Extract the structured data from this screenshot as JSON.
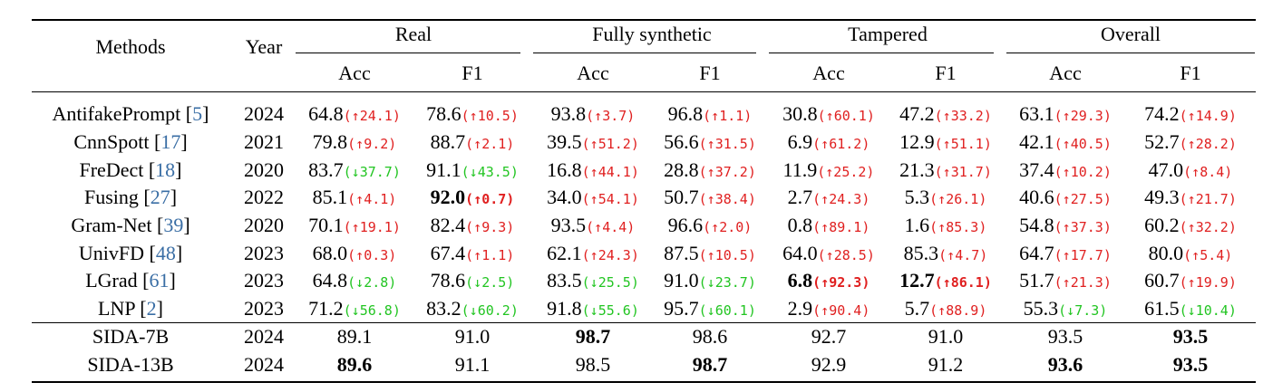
{
  "headers": {
    "methods": "Methods",
    "year": "Year",
    "groups": [
      "Real",
      "Fully synthetic",
      "Tampered",
      "Overall"
    ],
    "sub": [
      "Acc",
      "F1"
    ]
  },
  "rows": [
    {
      "name": "AntifakePrompt",
      "cite": "5",
      "year": "2024",
      "cells": [
        {
          "v": "64.8",
          "d": "(↑24.1)",
          "dir": "up"
        },
        {
          "v": "78.6",
          "d": "(↑10.5)",
          "dir": "up"
        },
        {
          "v": "93.8",
          "d": "(↑3.7)",
          "dir": "up"
        },
        {
          "v": "96.8",
          "d": "(↑1.1)",
          "dir": "up"
        },
        {
          "v": "30.8",
          "d": "(↑60.1)",
          "dir": "up"
        },
        {
          "v": "47.2",
          "d": "(↑33.2)",
          "dir": "up"
        },
        {
          "v": "63.1",
          "d": "(↑29.3)",
          "dir": "up"
        },
        {
          "v": "74.2",
          "d": "(↑14.9)",
          "dir": "up"
        }
      ]
    },
    {
      "name": "CnnSpott",
      "cite": "17",
      "year": "2021",
      "cells": [
        {
          "v": "79.8",
          "d": "(↑9.2)",
          "dir": "up"
        },
        {
          "v": "88.7",
          "d": "(↑2.1)",
          "dir": "up"
        },
        {
          "v": "39.5",
          "d": "(↑51.2)",
          "dir": "up"
        },
        {
          "v": "56.6",
          "d": "(↑31.5)",
          "dir": "up"
        },
        {
          "v": "6.9",
          "d": "(↑61.2)",
          "dir": "up"
        },
        {
          "v": "12.9",
          "d": "(↑51.1)",
          "dir": "up"
        },
        {
          "v": "42.1",
          "d": "(↑40.5)",
          "dir": "up"
        },
        {
          "v": "52.7",
          "d": "(↑28.2)",
          "dir": "up"
        }
      ]
    },
    {
      "name": "FreDect",
      "cite": "18",
      "year": "2020",
      "cells": [
        {
          "v": "83.7",
          "d": "(↓37.7)",
          "dir": "down"
        },
        {
          "v": "91.1",
          "d": "(↓43.5)",
          "dir": "down"
        },
        {
          "v": "16.8",
          "d": "(↑44.1)",
          "dir": "up"
        },
        {
          "v": "28.8",
          "d": "(↑37.2)",
          "dir": "up"
        },
        {
          "v": "11.9",
          "d": "(↑25.2)",
          "dir": "up"
        },
        {
          "v": "21.3",
          "d": "(↑31.7)",
          "dir": "up"
        },
        {
          "v": "37.4",
          "d": "(↑10.2)",
          "dir": "up"
        },
        {
          "v": "47.0",
          "d": "(↑8.4)",
          "dir": "up"
        }
      ]
    },
    {
      "name": "Fusing",
      "cite": "27",
      "year": "2022",
      "cells": [
        {
          "v": "85.1",
          "d": "(↑4.1)",
          "dir": "up"
        },
        {
          "v": "92.0",
          "d": "(↑0.7)",
          "dir": "up",
          "bold": true
        },
        {
          "v": "34.0",
          "d": "(↑54.1)",
          "dir": "up"
        },
        {
          "v": "50.7",
          "d": "(↑38.4)",
          "dir": "up"
        },
        {
          "v": "2.7",
          "d": "(↑24.3)",
          "dir": "up"
        },
        {
          "v": "5.3",
          "d": "(↑26.1)",
          "dir": "up"
        },
        {
          "v": "40.6",
          "d": "(↑27.5)",
          "dir": "up"
        },
        {
          "v": "49.3",
          "d": "(↑21.7)",
          "dir": "up"
        }
      ]
    },
    {
      "name": "Gram-Net",
      "cite": "39",
      "year": "2020",
      "cells": [
        {
          "v": "70.1",
          "d": "(↑19.1)",
          "dir": "up"
        },
        {
          "v": "82.4",
          "d": "(↑9.3)",
          "dir": "up"
        },
        {
          "v": "93.5",
          "d": "(↑4.4)",
          "dir": "up"
        },
        {
          "v": "96.6",
          "d": "(↑2.0)",
          "dir": "up"
        },
        {
          "v": "0.8",
          "d": "(↑89.1)",
          "dir": "up"
        },
        {
          "v": "1.6",
          "d": "(↑85.3)",
          "dir": "up"
        },
        {
          "v": "54.8",
          "d": "(↑37.3)",
          "dir": "up"
        },
        {
          "v": "60.2",
          "d": "(↑32.2)",
          "dir": "up"
        }
      ]
    },
    {
      "name": "UnivFD",
      "cite": "48",
      "year": "2023",
      "cells": [
        {
          "v": "68.0",
          "d": "(↑0.3)",
          "dir": "up"
        },
        {
          "v": "67.4",
          "d": "(↑1.1)",
          "dir": "up"
        },
        {
          "v": "62.1",
          "d": "(↑24.3)",
          "dir": "up"
        },
        {
          "v": "87.5",
          "d": "(↑10.5)",
          "dir": "up"
        },
        {
          "v": "64.0",
          "d": "(↑28.5)",
          "dir": "up"
        },
        {
          "v": "85.3",
          "d": "(↑4.7)",
          "dir": "up"
        },
        {
          "v": "64.7",
          "d": "(↑17.7)",
          "dir": "up"
        },
        {
          "v": "80.0",
          "d": "(↑5.4)",
          "dir": "up"
        }
      ]
    },
    {
      "name": "LGrad",
      "cite": "61",
      "year": "2023",
      "cells": [
        {
          "v": "64.8",
          "d": "(↓2.8)",
          "dir": "down"
        },
        {
          "v": "78.6",
          "d": "(↓2.5)",
          "dir": "down"
        },
        {
          "v": "83.5",
          "d": "(↓25.5)",
          "dir": "down"
        },
        {
          "v": "91.0",
          "d": "(↓23.7)",
          "dir": "down"
        },
        {
          "v": "6.8",
          "d": "(↑92.3)",
          "dir": "up",
          "bold": true
        },
        {
          "v": "12.7",
          "d": "(↑86.1)",
          "dir": "up",
          "bold": true
        },
        {
          "v": "51.7",
          "d": "(↑21.3)",
          "dir": "up"
        },
        {
          "v": "60.7",
          "d": "(↑19.9)",
          "dir": "up"
        }
      ]
    },
    {
      "name": "LNP",
      "cite": "2",
      "year": "2023",
      "cells": [
        {
          "v": "71.2",
          "d": "(↓56.8)",
          "dir": "down"
        },
        {
          "v": "83.2",
          "d": "(↓60.2)",
          "dir": "down"
        },
        {
          "v": "91.8",
          "d": "(↓55.6)",
          "dir": "down"
        },
        {
          "v": "95.7",
          "d": "(↓60.1)",
          "dir": "down"
        },
        {
          "v": "2.9",
          "d": "(↑90.4)",
          "dir": "up"
        },
        {
          "v": "5.7",
          "d": "(↑88.9)",
          "dir": "up"
        },
        {
          "v": "55.3",
          "d": "(↓7.3)",
          "dir": "down"
        },
        {
          "v": "61.5",
          "d": "(↓10.4)",
          "dir": "down"
        }
      ]
    },
    {
      "name": "SIDA-7B",
      "cite": "",
      "year": "2024",
      "cells": [
        {
          "v": "89.1"
        },
        {
          "v": "91.0"
        },
        {
          "v": "98.7",
          "bold": true
        },
        {
          "v": "98.6"
        },
        {
          "v": "92.7"
        },
        {
          "v": "91.0"
        },
        {
          "v": "93.5"
        },
        {
          "v": "93.5",
          "bold": true
        }
      ]
    },
    {
      "name": "SIDA-13B",
      "cite": "",
      "year": "2024",
      "cells": [
        {
          "v": "89.6",
          "bold": true
        },
        {
          "v": "91.1"
        },
        {
          "v": "98.5"
        },
        {
          "v": "98.7",
          "bold": true
        },
        {
          "v": "92.9"
        },
        {
          "v": "91.2"
        },
        {
          "v": "93.6",
          "bold": true
        },
        {
          "v": "93.5",
          "bold": true
        }
      ]
    }
  ],
  "colors": {
    "up": "#e02020",
    "down": "#22c522",
    "cite": "#3a6ea5"
  }
}
